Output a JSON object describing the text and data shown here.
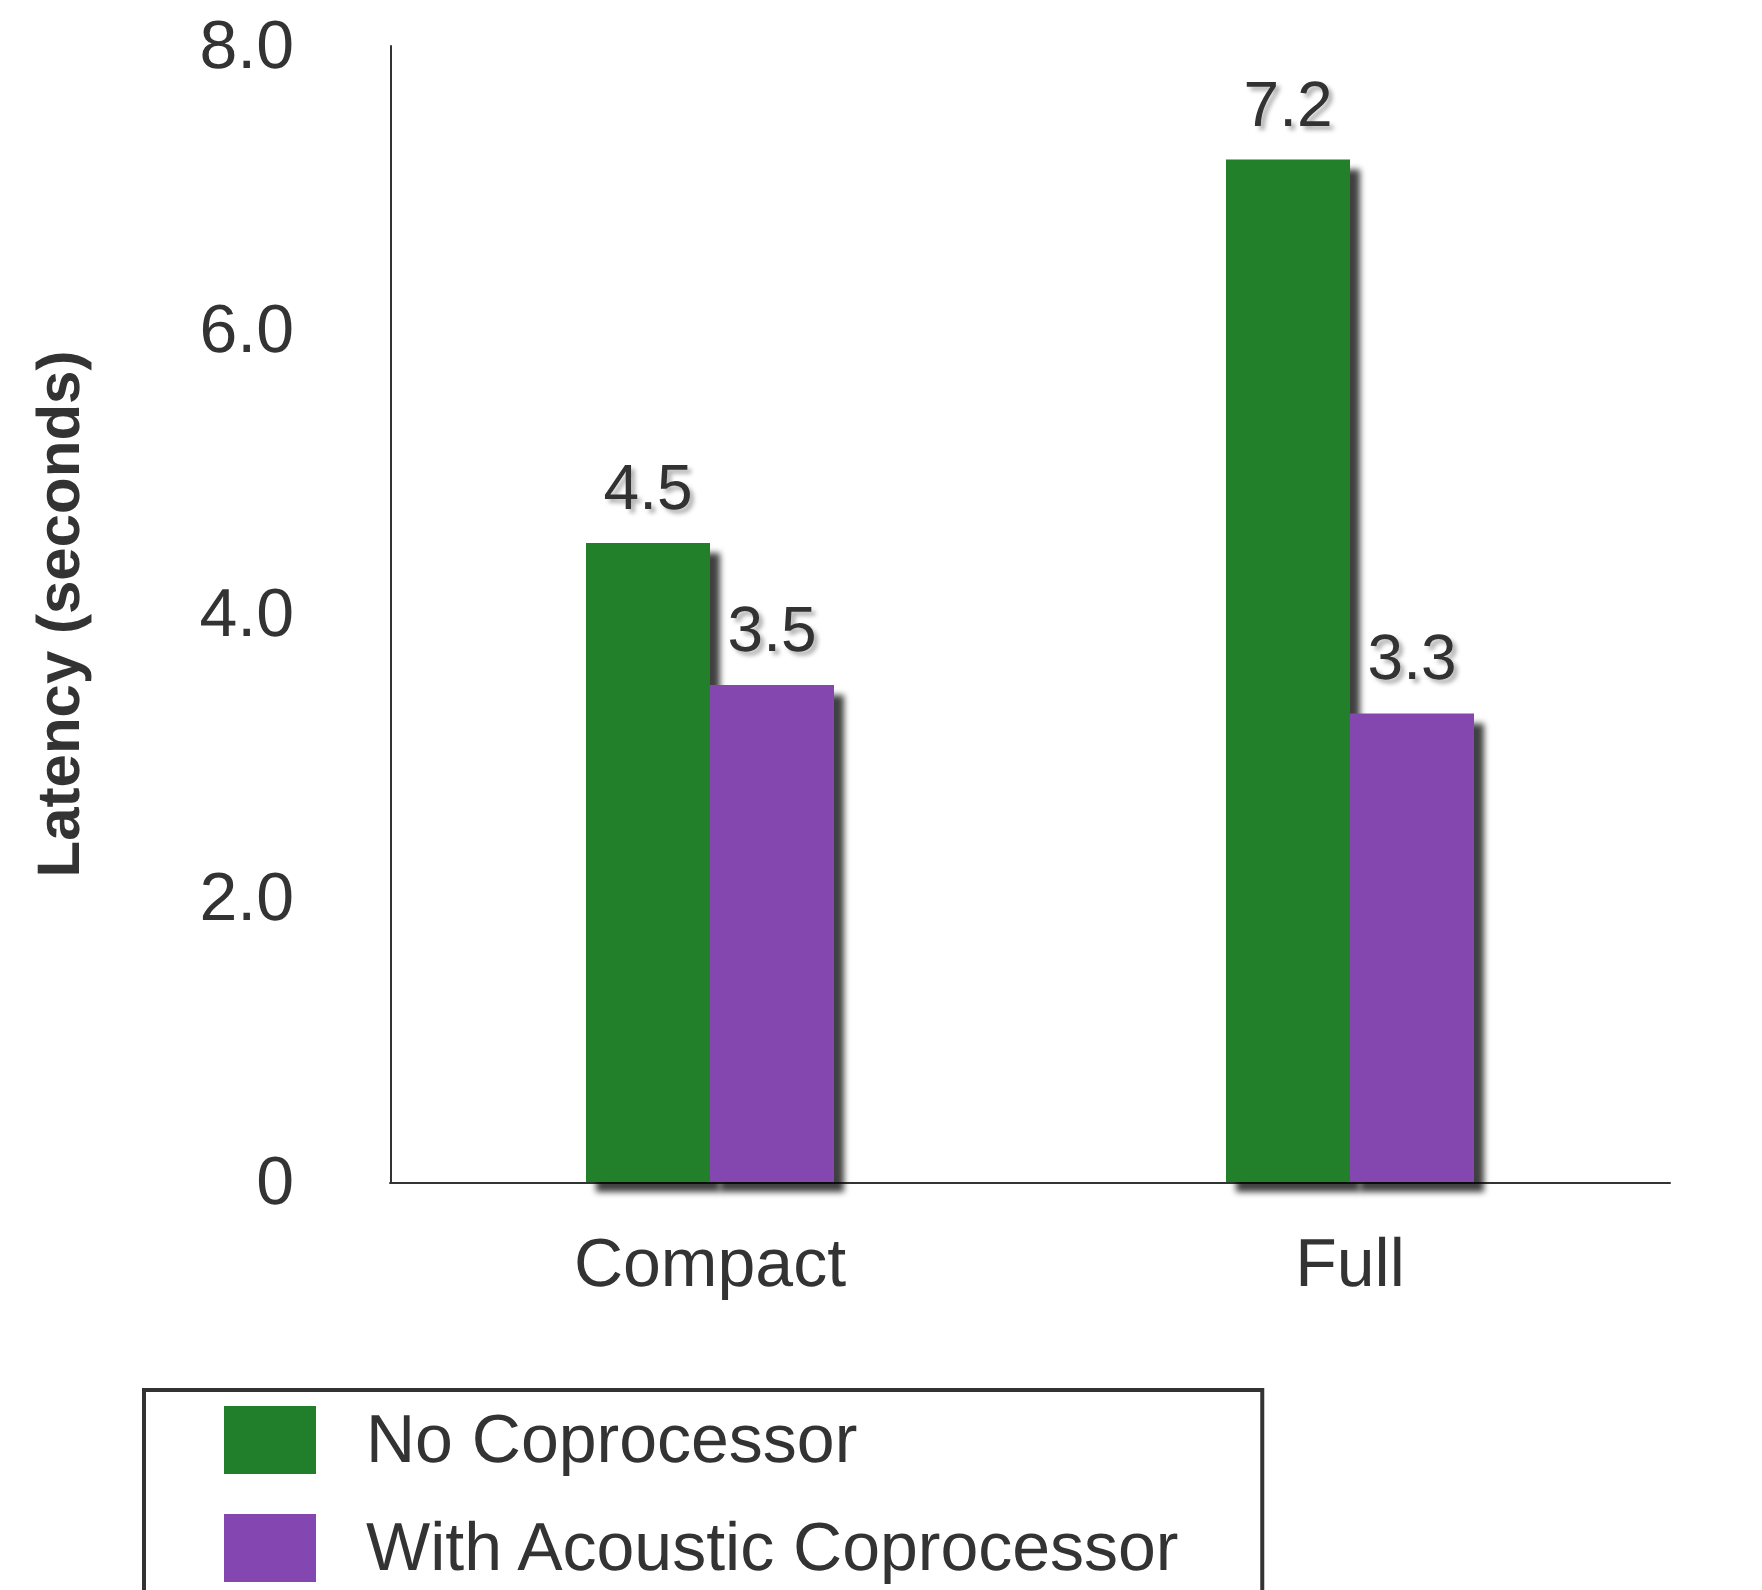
{
  "chart_data": {
    "type": "bar",
    "ylabel": "Latency (seconds)",
    "categories": [
      "Compact",
      "Full"
    ],
    "series": [
      {
        "name": "No Coprocessor",
        "color": "#217f2b",
        "values": [
          4.5,
          7.2
        ]
      },
      {
        "name": "With Acoustic Coprocessor",
        "color": "#8446b0",
        "values": [
          3.5,
          3.3
        ]
      }
    ],
    "ylim": [
      0,
      8
    ],
    "yticks": [
      0,
      {
        "value": 2,
        "label": "2.0"
      },
      {
        "value": 4,
        "label": "4.0"
      },
      {
        "value": 6,
        "label": "6.0"
      },
      {
        "value": 8,
        "label": "8.0"
      }
    ],
    "data_labels": true,
    "grid": false,
    "legend": "bottom"
  }
}
